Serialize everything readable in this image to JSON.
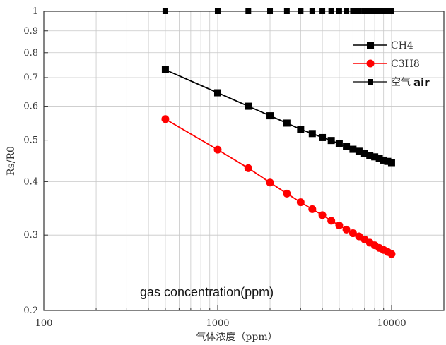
{
  "chart_data": {
    "type": "line",
    "xscale": "log",
    "yscale": "log",
    "xlim": [
      100,
      20000
    ],
    "ylim": [
      0.2,
      1
    ],
    "xlabel": "气体浓度（ppm）",
    "ylabel": "Rs/R0",
    "x_ticks": [
      100,
      1000,
      10000
    ],
    "x_tick_labels": [
      "100",
      "1000",
      "10000"
    ],
    "y_ticks": [
      0.2,
      0.3,
      0.4,
      0.5,
      0.6,
      0.7,
      0.8,
      0.9,
      1
    ],
    "y_tick_labels": [
      "0.2",
      "0.3",
      "0.4",
      "0.5",
      "0.6",
      "0.7",
      "0.8",
      "0.9",
      "1"
    ],
    "grid": true,
    "legend_position": "top-right",
    "annotation": "gas concentration(ppm)",
    "series": [
      {
        "name": "CH4",
        "color": "#000000",
        "marker": "square",
        "x": [
          500,
          1000,
          1500,
          2000,
          2500,
          3000,
          3500,
          4000,
          4500,
          5000,
          5500,
          6000,
          6500,
          7000,
          7500,
          8000,
          8500,
          9000,
          9500,
          10000
        ],
        "values": [
          0.73,
          0.645,
          0.6,
          0.57,
          0.548,
          0.53,
          0.518,
          0.507,
          0.499,
          0.49,
          0.483,
          0.476,
          0.471,
          0.466,
          0.461,
          0.457,
          0.453,
          0.449,
          0.446,
          0.443
        ]
      },
      {
        "name": "C3H8",
        "color": "#ff0000",
        "marker": "circle",
        "x": [
          500,
          1000,
          1500,
          2000,
          2500,
          3000,
          3500,
          4000,
          4500,
          5000,
          5500,
          6000,
          6500,
          7000,
          7500,
          8000,
          8500,
          9000,
          9500,
          10000
        ],
        "values": [
          0.56,
          0.475,
          0.43,
          0.398,
          0.375,
          0.358,
          0.345,
          0.334,
          0.324,
          0.316,
          0.309,
          0.303,
          0.298,
          0.293,
          0.288,
          0.284,
          0.28,
          0.277,
          0.274,
          0.271
        ]
      },
      {
        "name": "空气",
        "name_suffix": "air",
        "color": "#000000",
        "marker": "square-small",
        "x": [
          500,
          1000,
          1500,
          2000,
          2500,
          3000,
          3500,
          4000,
          4500,
          5000,
          5500,
          6000,
          6500,
          7000,
          7500,
          8000,
          8500,
          9000,
          9500,
          10000
        ],
        "values": [
          1,
          1,
          1,
          1,
          1,
          1,
          1,
          1,
          1,
          1,
          1,
          1,
          1,
          1,
          1,
          1,
          1,
          1,
          1,
          1
        ]
      }
    ]
  }
}
